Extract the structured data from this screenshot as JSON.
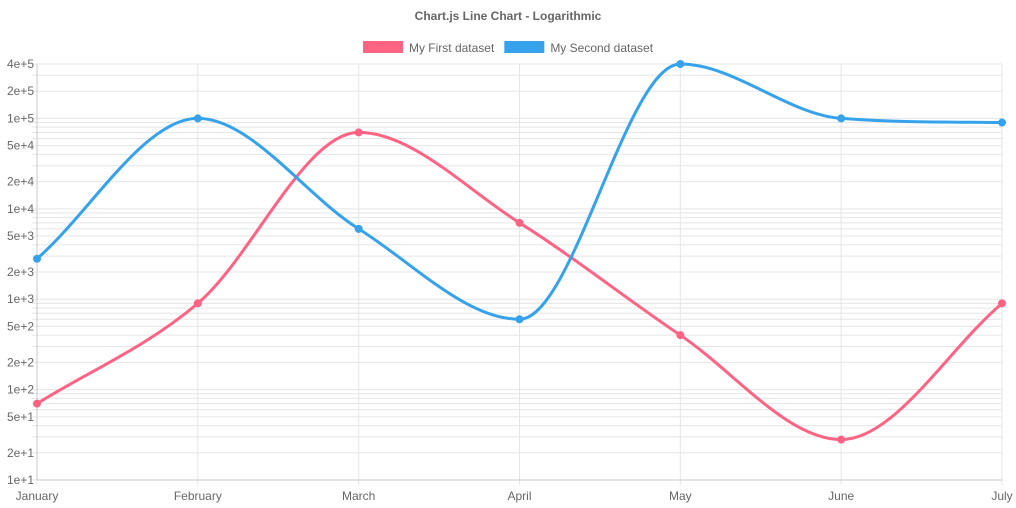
{
  "chart_data": {
    "type": "line",
    "title": "Chart.js Line Chart - Logarithmic",
    "categories": [
      "January",
      "February",
      "March",
      "April",
      "May",
      "June",
      "July"
    ],
    "series": [
      {
        "name": "My First dataset",
        "color": "#ff6384",
        "values": [
          70,
          900,
          70000,
          7000,
          400,
          28,
          900
        ]
      },
      {
        "name": "My Second dataset",
        "color": "#36a2eb",
        "values": [
          2800,
          100000,
          6000,
          600,
          400000,
          100000,
          90000
        ]
      }
    ],
    "y_scale": "logarithmic",
    "ylim": [
      10,
      400000
    ],
    "y_ticks": [
      {
        "value": 10,
        "label": "1e+1"
      },
      {
        "value": 20,
        "label": "2e+1"
      },
      {
        "value": 50,
        "label": "5e+1"
      },
      {
        "value": 100,
        "label": "1e+2"
      },
      {
        "value": 200,
        "label": "2e+2"
      },
      {
        "value": 500,
        "label": "5e+2"
      },
      {
        "value": 1000,
        "label": "1e+3"
      },
      {
        "value": 2000,
        "label": "2e+3"
      },
      {
        "value": 5000,
        "label": "5e+3"
      },
      {
        "value": 10000,
        "label": "1e+4"
      },
      {
        "value": 20000,
        "label": "2e+4"
      },
      {
        "value": 50000,
        "label": "5e+4"
      },
      {
        "value": 100000,
        "label": "1e+5"
      },
      {
        "value": 200000,
        "label": "2e+5"
      },
      {
        "value": 400000,
        "label": "4e+5"
      }
    ],
    "grid": true,
    "legend_position": "top",
    "grid_color": "#e5e5e5"
  }
}
